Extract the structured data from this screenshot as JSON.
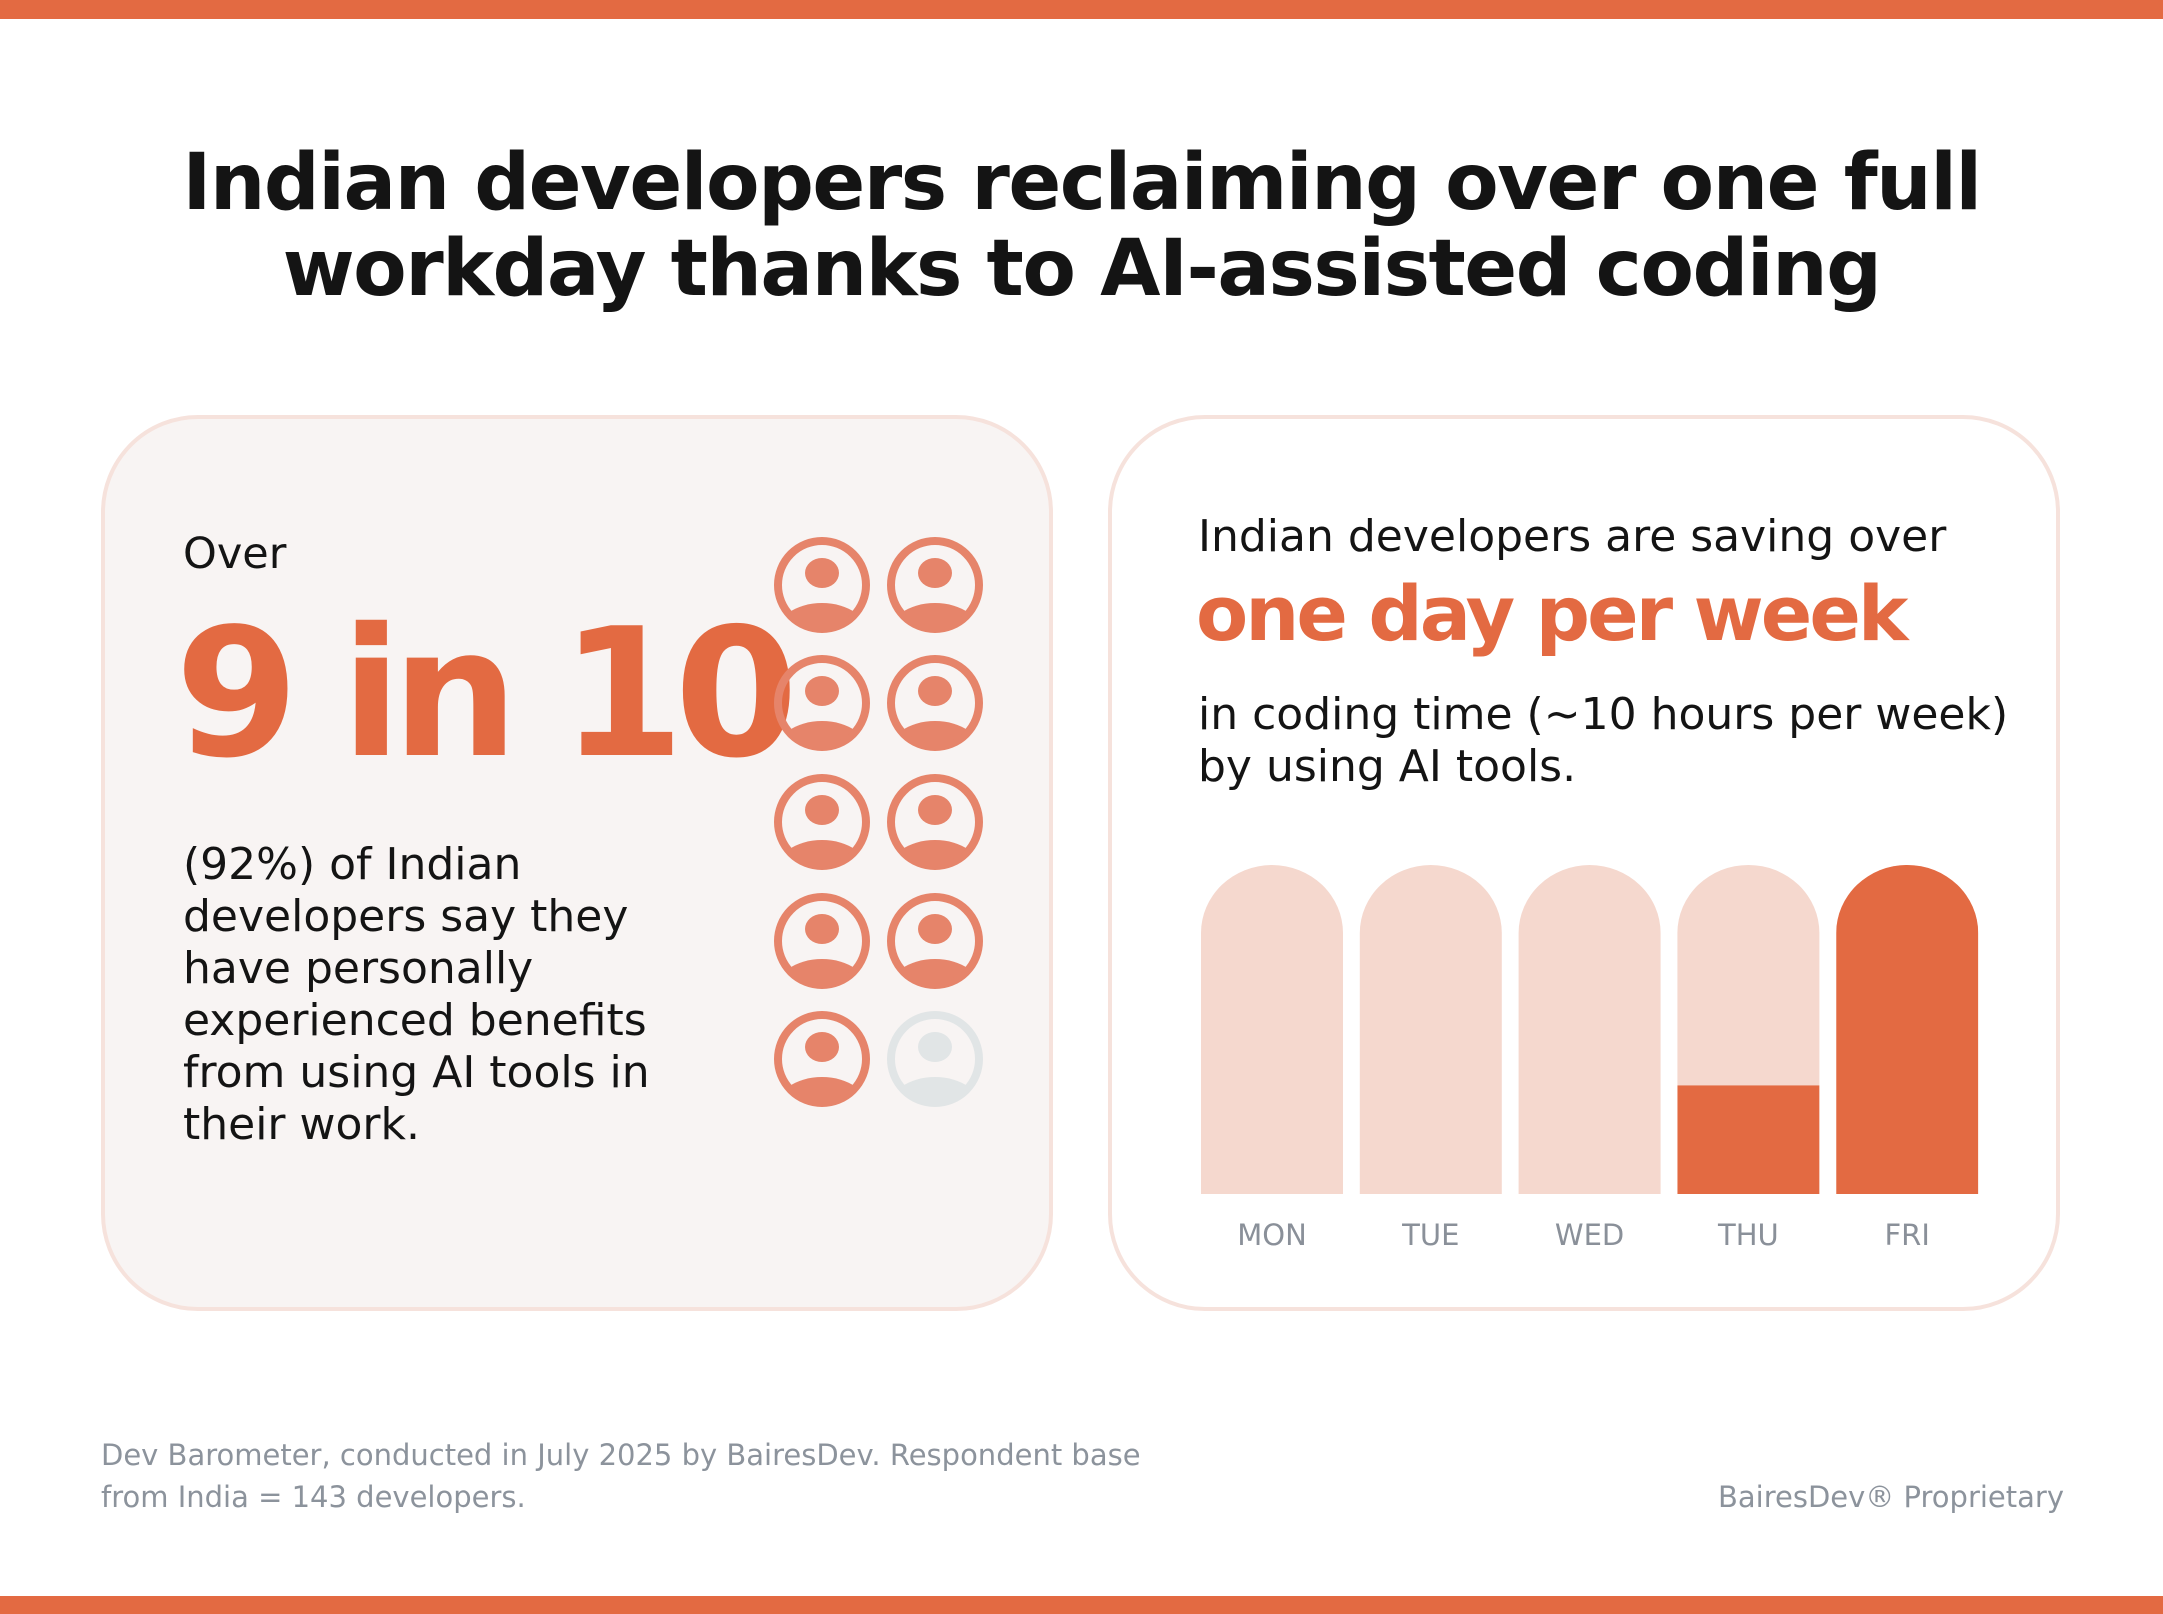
{
  "title": {
    "line1": "Indian developers reclaiming over one full",
    "line2": "workday thanks to AI-assisted coding"
  },
  "left_card": {
    "prefix": "Over",
    "headline": "9 in 10",
    "description": "(92%) of Indian developers say they have personally experienced benefits from using AI tools in their work.",
    "icon_grid": {
      "icon": "user-circle-icon",
      "total": 10,
      "highlighted": 9,
      "highlight_color": "#e6846a",
      "muted_color": "#e1e5e6"
    }
  },
  "right_card": {
    "intro": "Indian developers are saving over",
    "highlight": "one day per week",
    "detail": "in coding time (~10 hours per week) by using AI tools."
  },
  "chart_data": {
    "type": "bar",
    "categories": [
      "MON",
      "TUE",
      "WED",
      "THU",
      "FRI"
    ],
    "values": [
      0,
      0,
      0,
      0.33,
      1
    ],
    "value_meaning": "fraction of workday saved (filled portion)",
    "background_color": "#f5d8ce",
    "fill_color": "#e36a42",
    "grid": false
  },
  "footer": {
    "source_line1": "Dev Barometer, conducted in July 2025 by BairesDev. Respondent base",
    "source_line2": "from India = 143 developers.",
    "proprietary": "BairesDev® Proprietary"
  },
  "colors": {
    "accent": "#e36a42",
    "card_bg": "#f8f4f3",
    "card_border": "#f6e2dc",
    "footer_text": "#8c939c"
  }
}
